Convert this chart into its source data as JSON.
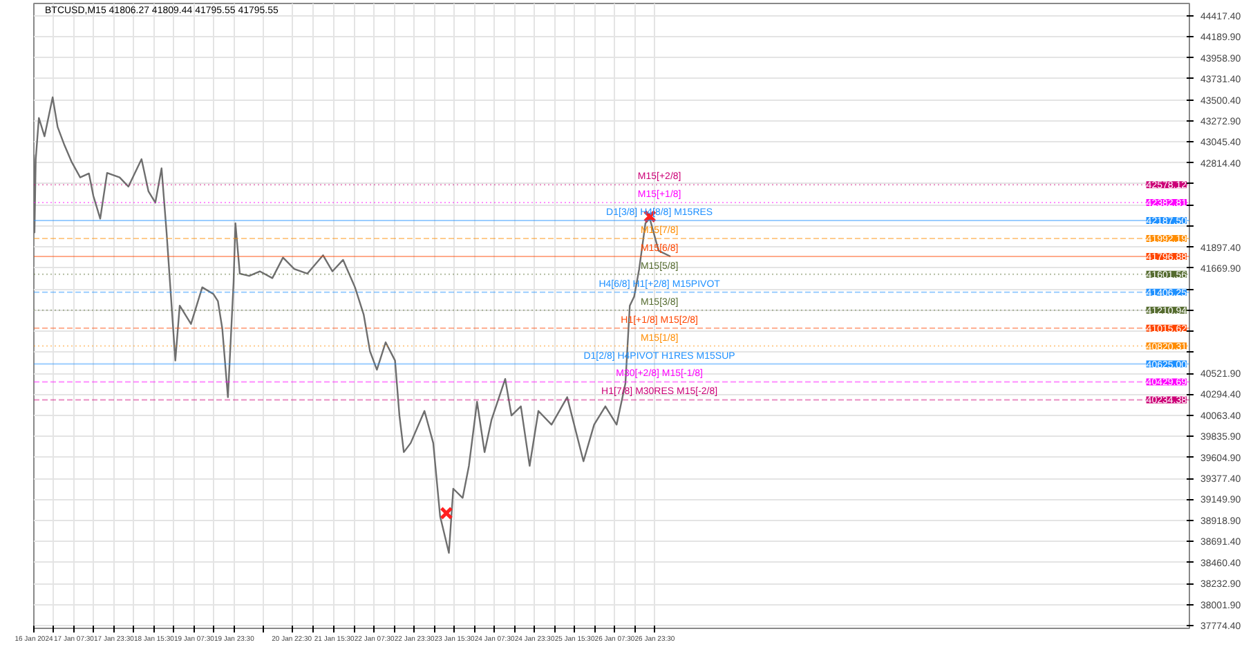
{
  "chart_data": {
    "type": "line",
    "title": "BTCUSD,M15  41806.27 41809.44 41795.55 41795.55",
    "xlim": [
      "2024-01-16T15:30",
      "2024-02-04T21:00"
    ],
    "ylim": [
      37745,
      44552
    ],
    "xticks": [
      {
        "value": "2024-01-16T15:30",
        "label": "16 Jan 2024"
      },
      {
        "value": "2024-01-16T23:30",
        "label": null
      },
      {
        "value": "2024-01-17T07:30",
        "label": "17 Jan 07:30"
      },
      {
        "value": "2024-01-17T15:30",
        "label": null
      },
      {
        "value": "2024-01-17T23:30",
        "label": "17 Jan 23:30"
      },
      {
        "value": "2024-01-18T07:30",
        "label": null
      },
      {
        "value": "2024-01-18T15:30",
        "label": "18 Jan 15:30"
      },
      {
        "value": "2024-01-18T23:30",
        "label": null
      },
      {
        "value": "2024-01-19T07:30",
        "label": "19 Jan 07:30"
      },
      {
        "value": "2024-01-19T15:30",
        "label": null
      },
      {
        "value": "2024-01-19T23:30",
        "label": "19 Jan 23:30"
      },
      {
        "value": "2024-01-20T11:00",
        "label": null
      },
      {
        "value": "2024-01-20T22:30",
        "label": "20 Jan 22:30"
      },
      {
        "value": "2024-01-21T07:00",
        "label": null
      },
      {
        "value": "2024-01-21T15:30",
        "label": "21 Jan 15:30"
      },
      {
        "value": "2024-01-21T23:30",
        "label": null
      },
      {
        "value": "2024-01-22T07:30",
        "label": "22 Jan 07:30"
      },
      {
        "value": "2024-01-22T15:30",
        "label": null
      },
      {
        "value": "2024-01-22T23:30",
        "label": "22 Jan 23:30"
      },
      {
        "value": "2024-01-23T07:30",
        "label": null
      },
      {
        "value": "2024-01-23T15:30",
        "label": "23 Jan 15:30"
      },
      {
        "value": "2024-01-23T23:30",
        "label": null
      },
      {
        "value": "2024-01-24T07:30",
        "label": "24 Jan 07:30"
      },
      {
        "value": "2024-01-24T15:30",
        "label": null
      },
      {
        "value": "2024-01-24T23:30",
        "label": "24 Jan 23:30"
      },
      {
        "value": "2024-01-25T07:30",
        "label": null
      },
      {
        "value": "2024-01-25T15:30",
        "label": "25 Jan 15:30"
      },
      {
        "value": "2024-01-25T23:30",
        "label": null
      },
      {
        "value": "2024-01-26T07:30",
        "label": "26 Jan 07:30"
      },
      {
        "value": "2024-01-26T15:30",
        "label": null
      },
      {
        "value": "2024-01-26T23:30",
        "label": "26 Jan 23:30"
      }
    ],
    "yticks": [
      {
        "value": 37774.4,
        "label": "37774.40"
      },
      {
        "value": 38001.9,
        "label": "38001.90"
      },
      {
        "value": 38232.9,
        "label": "38232.90"
      },
      {
        "value": 38460.4,
        "label": "38460.40"
      },
      {
        "value": 38691.4,
        "label": "38691.40"
      },
      {
        "value": 38918.9,
        "label": "38918.90"
      },
      {
        "value": 39149.9,
        "label": "39149.90"
      },
      {
        "value": 39377.4,
        "label": "39377.40"
      },
      {
        "value": 39604.9,
        "label": "39604.90"
      },
      {
        "value": 39835.9,
        "label": "39835.90"
      },
      {
        "value": 40063.4,
        "label": "40063.40"
      },
      {
        "value": 40294.4,
        "label": "40294.40"
      },
      {
        "value": 40521.9,
        "label": "40521.90"
      },
      {
        "value": 40752.9,
        "label": null
      },
      {
        "value": 40980.4,
        "label": null
      },
      {
        "value": 41211.4,
        "label": null
      },
      {
        "value": 41438.9,
        "label": null
      },
      {
        "value": 41669.9,
        "label": "41669.90"
      },
      {
        "value": 41897.4,
        "label": "41897.40"
      },
      {
        "value": 42128.4,
        "label": null
      },
      {
        "value": 42355.9,
        "label": null
      },
      {
        "value": 42586.9,
        "label": null
      },
      {
        "value": 42814.4,
        "label": "42814.40"
      },
      {
        "value": 43045.4,
        "label": "43045.40"
      },
      {
        "value": 43272.9,
        "label": "43272.90"
      },
      {
        "value": 43500.4,
        "label": "43500.40"
      },
      {
        "value": 43731.4,
        "label": "43731.40"
      },
      {
        "value": 43958.9,
        "label": "43958.90"
      },
      {
        "value": 44189.9,
        "label": "44189.90"
      },
      {
        "value": 44417.4,
        "label": "44417.40"
      }
    ],
    "grid": true,
    "annotations": [
      {
        "text": "42578.12",
        "y": 42578.12
      },
      {
        "text": "42382.81",
        "y": 42382.81
      },
      {
        "text": "42187.50",
        "y": 42187.5
      },
      {
        "text": "41992.19",
        "y": 41992.19
      },
      {
        "text": "41796.88",
        "y": 41796.88
      },
      {
        "text": "41601.56",
        "y": 41601.56
      },
      {
        "text": "41406.25",
        "y": 41406.25
      },
      {
        "text": "41210.94",
        "y": 41210.94
      },
      {
        "text": "41015.62",
        "y": 41015.62
      },
      {
        "text": "40820.31",
        "y": 40820.31
      },
      {
        "text": "40625.00",
        "y": 40625.0
      },
      {
        "text": "40429.69",
        "y": 40429.69
      },
      {
        "text": "40234.38",
        "y": 40234.38
      }
    ],
    "series": [
      {
        "color": "#6e6e6e",
        "x": [
          "2024-01-16T15:30",
          "2024-01-16T15:45",
          "2024-01-16T16:15",
          "2024-01-16T17:30",
          "2024-01-16T19:45",
          "2024-01-16T23:00",
          "2024-01-17T01:00",
          "2024-01-17T03:45",
          "2024-01-17T06:30",
          "2024-01-17T10:00",
          "2024-01-17T13:30",
          "2024-01-17T15:15",
          "2024-01-17T18:00",
          "2024-01-17T20:45",
          "2024-01-18T01:45",
          "2024-01-18T05:15",
          "2024-01-18T10:30",
          "2024-01-18T13:15",
          "2024-01-18T16:00",
          "2024-01-18T18:30",
          "2024-01-18T20:30",
          "2024-01-18T22:15",
          "2024-01-19T00:00",
          "2024-01-19T01:45",
          "2024-01-19T06:15",
          "2024-01-19T10:45",
          "2024-01-19T15:15",
          "2024-01-19T17:00",
          "2024-01-19T18:45",
          "2024-01-19T21:00",
          "2024-01-19T23:15",
          "2024-01-20T00:00",
          "2024-01-20T01:45",
          "2024-01-20T05:30",
          "2024-01-20T09:45",
          "2024-01-20T14:45",
          "2024-01-20T19:00",
          "2024-01-20T23:30",
          "2024-01-21T04:45",
          "2024-01-21T11:00",
          "2024-01-21T14:45",
          "2024-01-21T19:00",
          "2024-01-21T23:45",
          "2024-01-22T03:15",
          "2024-01-22T05:45",
          "2024-01-22T08:30",
          "2024-01-22T12:00",
          "2024-01-22T15:45",
          "2024-01-22T17:30",
          "2024-01-22T19:15",
          "2024-01-22T22:00",
          "2024-01-23T03:30",
          "2024-01-23T07:00",
          "2024-01-23T09:45",
          "2024-01-23T13:15",
          "2024-01-23T15:00",
          "2024-01-23T18:45",
          "2024-01-23T21:15",
          "2024-01-24T00:30",
          "2024-01-24T03:30",
          "2024-01-24T06:15",
          "2024-01-24T11:45",
          "2024-01-24T14:15",
          "2024-01-24T18:00",
          "2024-01-24T21:30",
          "2024-01-25T01:00",
          "2024-01-25T06:15",
          "2024-01-25T12:30",
          "2024-01-25T19:00",
          "2024-01-25T23:15",
          "2024-01-26T03:45",
          "2024-01-26T08:15",
          "2024-01-26T11:45",
          "2024-01-26T13:30",
          "2024-01-26T15:15",
          "2024-01-26T17:15",
          "2024-01-26T19:45",
          "2024-01-26T21:30",
          "2024-01-27T01:00",
          "2024-01-27T05:45"
        ],
        "values": [
          42906,
          42058,
          42856,
          43305,
          43105,
          43530,
          43205,
          43006,
          42831,
          42657,
          42700,
          42457,
          42208,
          42706,
          42657,
          42557,
          42856,
          42507,
          42382,
          42756,
          42058,
          41360,
          40662,
          41260,
          41061,
          41460,
          41385,
          41310,
          41011,
          40263,
          41510,
          42158,
          41609,
          41584,
          41634,
          41560,
          41784,
          41659,
          41609,
          41809,
          41634,
          41759,
          41460,
          41160,
          40762,
          40562,
          40861,
          40662,
          40063,
          39664,
          39764,
          40113,
          39764,
          38966,
          38567,
          39266,
          39166,
          39515,
          40213,
          39664,
          40014,
          40462,
          40063,
          40163,
          39515,
          40113,
          39964,
          40263,
          39565,
          39964,
          40163,
          39964,
          40412,
          41260,
          41360,
          41659,
          42158,
          42208,
          41859,
          41796
        ]
      },
      {
        "type": "scatter",
        "marker": "cross",
        "color": "#ff2020",
        "x": [
          "2024-01-23T12:15",
          "2024-01-26T21:30"
        ],
        "values": [
          39000,
          42233
        ]
      }
    ],
    "ref_lines": [
      {
        "axis": "y",
        "value": 42578.12,
        "label": "M15[+2/8]",
        "color": "#cc0077",
        "line_style": "dotted"
      },
      {
        "axis": "y",
        "value": 42382.81,
        "label": "M15[+1/8]",
        "color": "#ff00ff",
        "line_style": "dotted"
      },
      {
        "axis": "y",
        "value": 42187.5,
        "label": "D1[3/8] H4[8/8] M15RES",
        "color": "#1e90ff",
        "line_style": "solid"
      },
      {
        "axis": "y",
        "value": 41992.19,
        "label": "M15[7/8]",
        "color": "#ff8c00",
        "line_style": "dashed"
      },
      {
        "axis": "y",
        "value": 41796.88,
        "label": "M15[6/8]",
        "color": "#ff4500",
        "line_style": "solid"
      },
      {
        "axis": "y",
        "value": 41601.56,
        "label": "M15[5/8]",
        "color": "#556b2f",
        "line_style": "dotted"
      },
      {
        "axis": "y",
        "value": 41406.25,
        "label": "H4[6/8] H1[+2/8] M15PIVOT",
        "color": "#1e90ff",
        "line_style": "dashed"
      },
      {
        "axis": "y",
        "value": 41210.94,
        "label": "M15[3/8]",
        "color": "#556b2f",
        "line_style": "dotted"
      },
      {
        "axis": "y",
        "value": 41015.62,
        "label": "H1[+1/8] M15[2/8]",
        "color": "#ff4500",
        "line_style": "dashed"
      },
      {
        "axis": "y",
        "value": 40820.31,
        "label": "M15[1/8]",
        "color": "#ff8c00",
        "line_style": "dotted"
      },
      {
        "axis": "y",
        "value": 40625.0,
        "label": "D1[2/8] H4PIVOT H1RES M15SUP",
        "color": "#1e90ff",
        "line_style": "solid"
      },
      {
        "axis": "y",
        "value": 40429.69,
        "label": "M30[+2/8] M15[-1/8]",
        "color": "#ff00ff",
        "line_style": "dashed"
      },
      {
        "axis": "y",
        "value": 40234.38,
        "label": "H1[7/8] M30RES M15[-2/8]",
        "color": "#cc0077",
        "line_style": "dashed"
      }
    ]
  }
}
